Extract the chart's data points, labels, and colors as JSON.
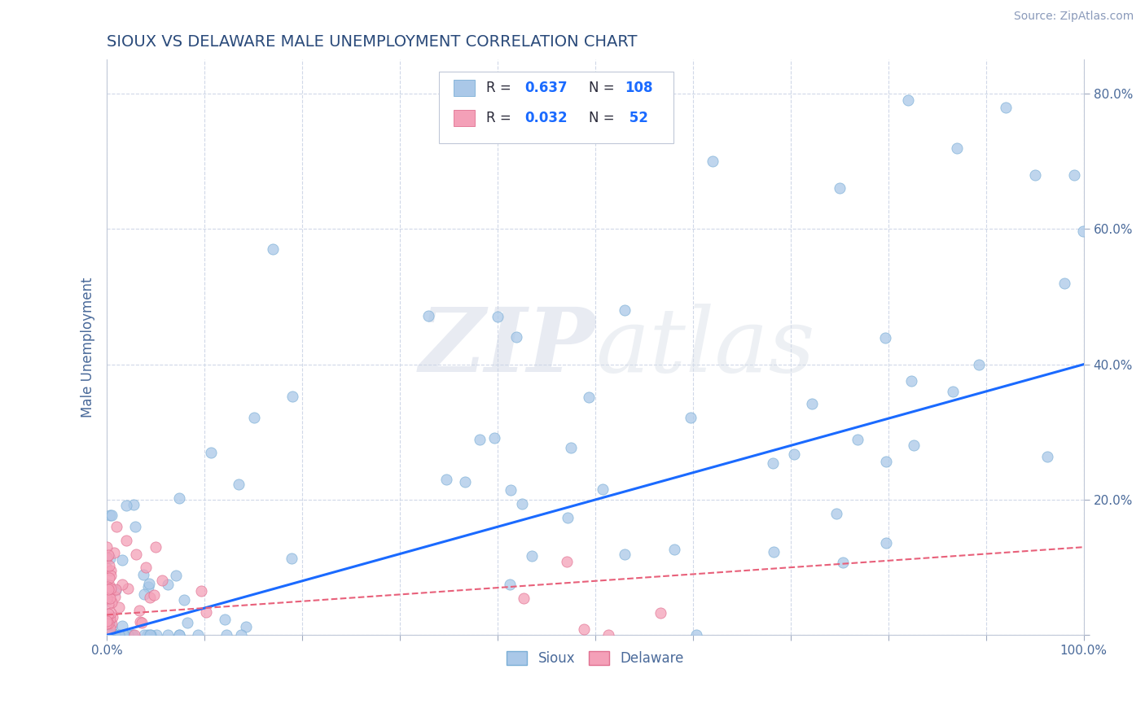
{
  "title": "SIOUX VS DELAWARE MALE UNEMPLOYMENT CORRELATION CHART",
  "source": "Source: ZipAtlas.com",
  "ylabel": "Male Unemployment",
  "xlim": [
    0.0,
    1.0
  ],
  "ylim": [
    0.0,
    0.85
  ],
  "sioux_R": 0.637,
  "sioux_N": 108,
  "delaware_R": 0.032,
  "delaware_N": 52,
  "sioux_color": "#aac8e8",
  "sioux_edge_color": "#7aaed6",
  "delaware_color": "#f4a0b8",
  "delaware_edge_color": "#e07090",
  "sioux_trend_color": "#1a6aff",
  "delaware_trend_color": "#e8607a",
  "background_color": "#ffffff",
  "grid_color": "#d0d8e8",
  "title_color": "#2a4a7a",
  "axis_label_color": "#4a6a9a",
  "tick_color": "#4a6a9a",
  "legend_R_color": "#1a6aff",
  "legend_label_color": "#2a2a3a"
}
